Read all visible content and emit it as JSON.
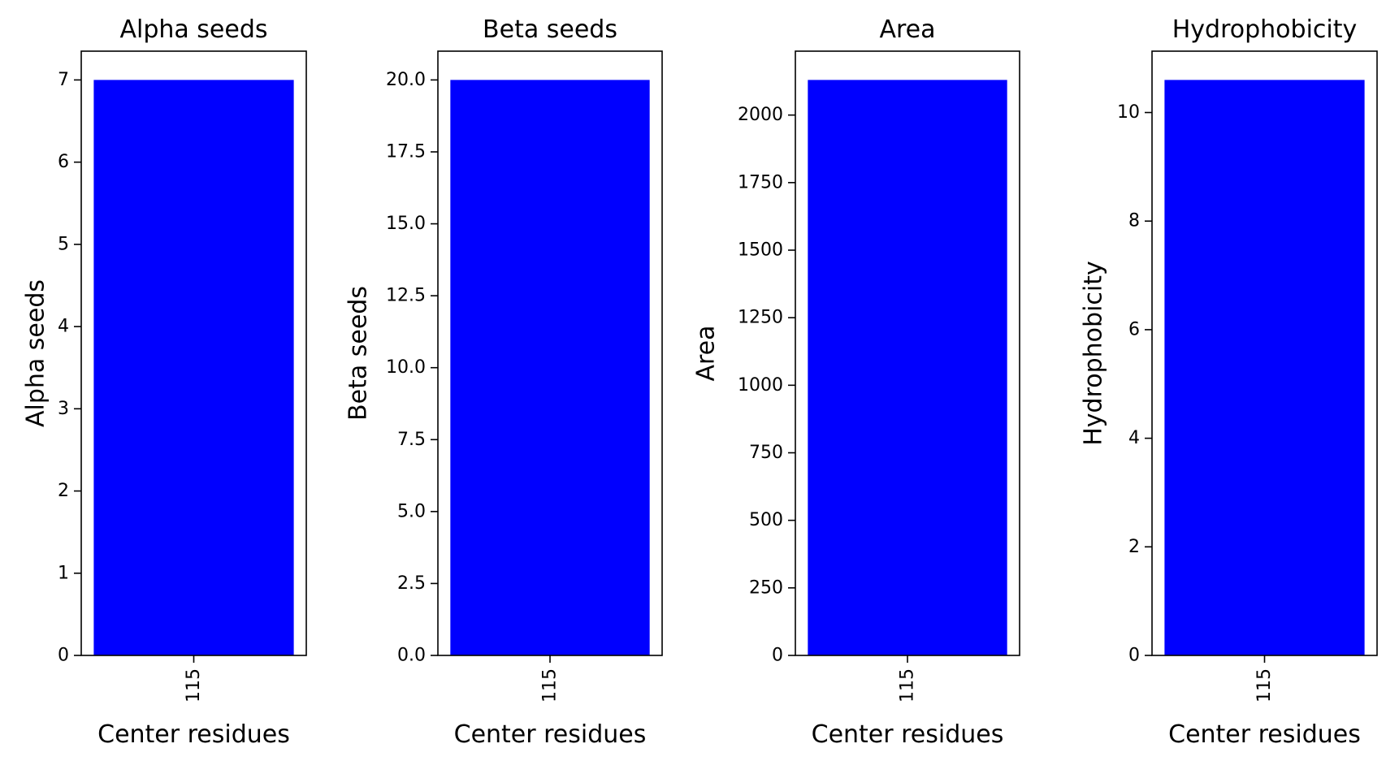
{
  "chart_data": [
    {
      "type": "bar",
      "title": "Alpha seeds",
      "xlabel": "Center residues",
      "ylabel": "Alpha seeds",
      "categories": [
        "115"
      ],
      "values": [
        7
      ],
      "ylim": [
        0,
        7.35
      ],
      "yticks": [
        "0",
        "1",
        "2",
        "3",
        "4",
        "5",
        "6",
        "7"
      ],
      "bar_color": "#0000ff",
      "grid": false
    },
    {
      "type": "bar",
      "title": "Beta seeds",
      "xlabel": "Center residues",
      "ylabel": "Beta seeds",
      "categories": [
        "115"
      ],
      "values": [
        20
      ],
      "ylim": [
        0,
        21
      ],
      "yticks": [
        "0.0",
        "2.5",
        "5.0",
        "7.5",
        "10.0",
        "12.5",
        "15.0",
        "17.5",
        "20.0"
      ],
      "bar_color": "#0000ff",
      "grid": false
    },
    {
      "type": "bar",
      "title": "Area",
      "xlabel": "Center residues",
      "ylabel": "Area",
      "categories": [
        "115"
      ],
      "values": [
        2130
      ],
      "ylim": [
        0,
        2236.5
      ],
      "yticks": [
        "0",
        "250",
        "500",
        "750",
        "1000",
        "1250",
        "1500",
        "1750",
        "2000"
      ],
      "bar_color": "#0000ff",
      "grid": false
    },
    {
      "type": "bar",
      "title": "Hydrophobicity",
      "xlabel": "Center residues",
      "ylabel": "Hydrophobicity",
      "categories": [
        "115"
      ],
      "values": [
        10.6
      ],
      "ylim": [
        0,
        11.13
      ],
      "yticks": [
        "0",
        "2",
        "4",
        "6",
        "8",
        "10"
      ],
      "bar_color": "#0000ff",
      "grid": false
    }
  ]
}
